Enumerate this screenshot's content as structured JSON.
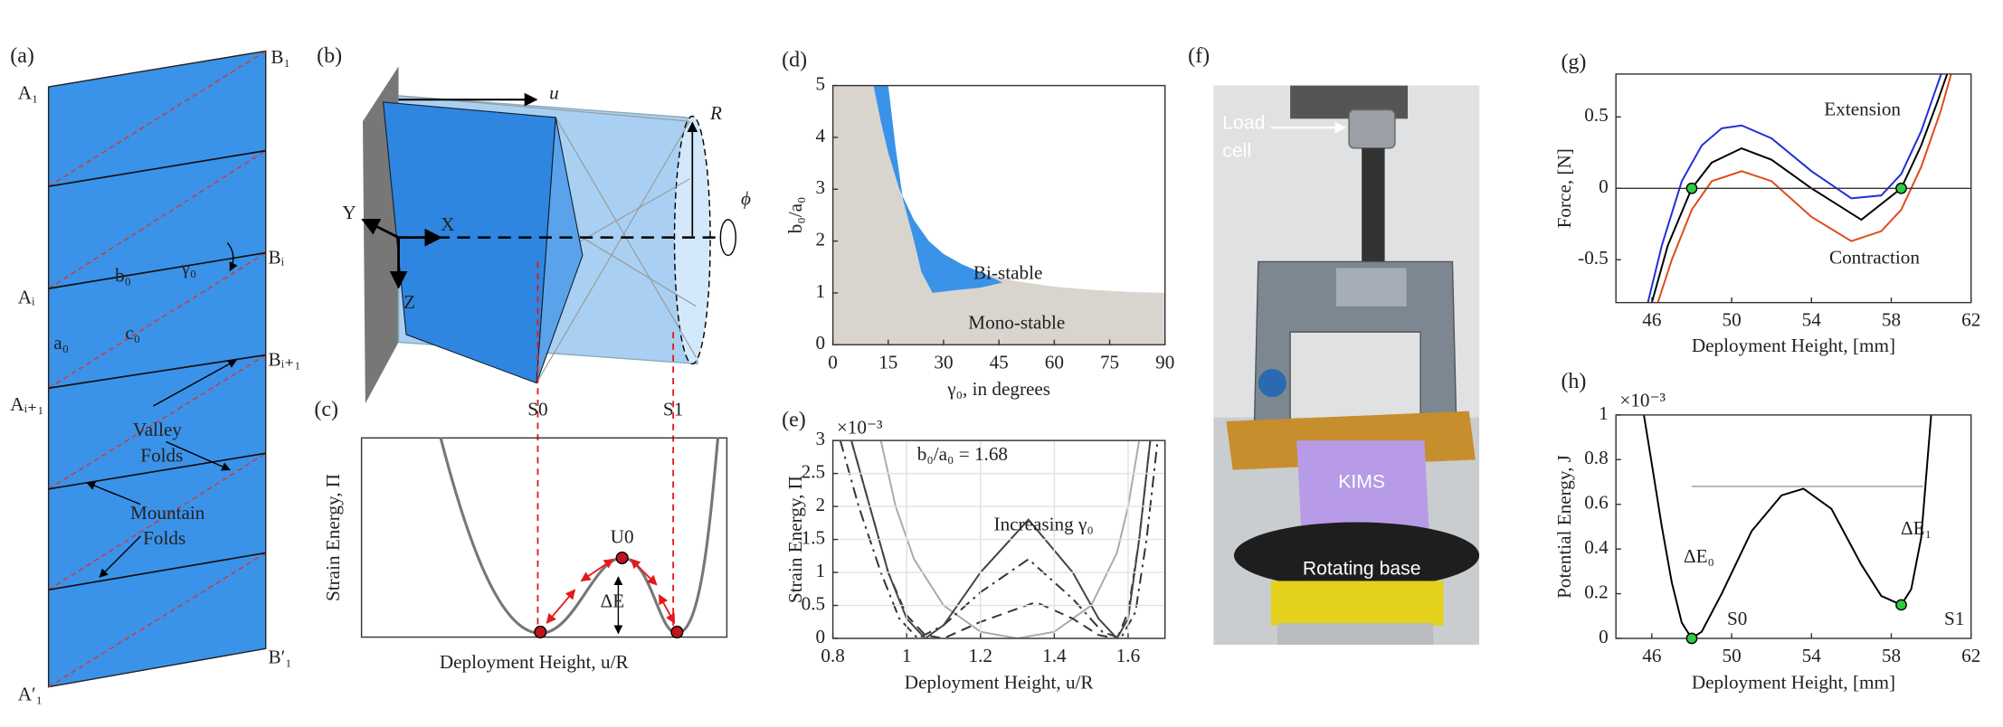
{
  "panel_a": {
    "label": "(a)",
    "vertex_labels": [
      "A₁",
      "B₁",
      "Aᵢ",
      "Bᵢ",
      "Aᵢ₊₁",
      "Bᵢ₊₁",
      "A′₁",
      "B′₁"
    ],
    "edge_labels": [
      "b₀",
      "γ₀",
      "a₀",
      "c₀"
    ],
    "valley_folds": [
      "Valley",
      "Folds"
    ],
    "mountain_folds": [
      "Mountain",
      "Folds"
    ]
  },
  "panel_b": {
    "label": "(b)",
    "labels": [
      "u",
      "R",
      "ϕ",
      "Y",
      "X",
      "Z",
      "S0",
      "S1"
    ]
  },
  "panel_c": {
    "label": "(c)",
    "ylabel": "Strain Energy, Π",
    "xlabel": "Deployment Height, u/R",
    "labels": [
      "U0",
      "ΔE"
    ]
  },
  "panel_f": {
    "label": "(f)",
    "load_cell": [
      "Load",
      "cell"
    ],
    "specimen": "KIMS",
    "base": "Rotating base"
  },
  "chart_data": [
    {
      "type": "area",
      "panel": "(d)",
      "xlabel": "γ₀, in degrees",
      "ylabel": "b₀/a₀",
      "xlim": [
        0,
        90
      ],
      "ylim": [
        0,
        5
      ],
      "xticks": [
        0,
        15,
        30,
        45,
        60,
        75,
        90
      ],
      "yticks": [
        0,
        1,
        2,
        3,
        4,
        5
      ],
      "series": [
        {
          "name": "Mono-stable",
          "color": "#d9d5ce",
          "x": [
            0,
            11,
            13,
            15,
            18,
            22,
            26,
            30,
            35,
            40,
            45,
            50,
            60,
            70,
            80,
            90,
            90,
            0
          ],
          "y": [
            5,
            5,
            4.3,
            3.7,
            3.0,
            2.4,
            2.0,
            1.75,
            1.55,
            1.4,
            1.3,
            1.22,
            1.12,
            1.06,
            1.02,
            1.0,
            0,
            0
          ]
        },
        {
          "name": "Bi-stable",
          "color": "#3a93e8",
          "x": [
            11,
            13,
            15,
            18,
            22,
            26,
            30,
            35,
            40,
            46,
            40,
            33,
            27,
            24,
            22,
            19,
            17,
            15
          ],
          "y": [
            5,
            4.3,
            3.7,
            3.0,
            2.4,
            2.0,
            1.75,
            1.55,
            1.4,
            1.2,
            1.1,
            1.05,
            1.0,
            1.4,
            2.0,
            2.8,
            3.8,
            5
          ]
        }
      ]
    },
    {
      "type": "line",
      "panel": "(e)",
      "xlabel": "Deployment Height, u/R",
      "ylabel": "Strain Energy, Π",
      "y_multiplier": "×10⁻³",
      "xlim": [
        0.8,
        1.7
      ],
      "ylim": [
        0,
        3
      ],
      "xticks": [
        0.8,
        1,
        1.2,
        1.4,
        1.6
      ],
      "yticks": [
        0,
        0.5,
        1,
        1.5,
        2,
        2.5,
        3
      ],
      "grid": true,
      "annotations": [
        "b₀/a₀ = 1.68",
        "Increasing γ₀"
      ],
      "series": [
        {
          "color": "#aaaaaa",
          "dash": "solid",
          "x": [
            0.93,
            0.97,
            1.02,
            1.1,
            1.2,
            1.3,
            1.4,
            1.5,
            1.57,
            1.6,
            1.63
          ],
          "y": [
            3,
            2.0,
            1.2,
            0.5,
            0.1,
            0,
            0.1,
            0.5,
            1.3,
            2,
            3
          ]
        },
        {
          "color": "#333333",
          "dash": "dashed",
          "x": [
            0.85,
            0.9,
            0.95,
            1.0,
            1.05,
            1.1,
            1.2,
            1.35,
            1.45,
            1.52,
            1.57,
            1.6,
            1.63,
            1.66
          ],
          "y": [
            3,
            2,
            1,
            0.35,
            0.05,
            0,
            0.25,
            0.55,
            0.3,
            0.05,
            0,
            0.4,
            1.5,
            3
          ]
        },
        {
          "color": "#333333",
          "dash": "dashdot",
          "x": [
            0.82,
            0.87,
            0.93,
            0.98,
            1.03,
            1.1,
            1.2,
            1.33,
            1.45,
            1.53,
            1.58,
            1.62,
            1.65,
            1.68
          ],
          "y": [
            3,
            2.0,
            1.0,
            0.3,
            0,
            0.2,
            0.7,
            1.2,
            0.6,
            0.1,
            0,
            0.4,
            1.5,
            3
          ]
        },
        {
          "color": "#444444",
          "dash": "solid",
          "x": [
            0.85,
            0.9,
            0.95,
            1.0,
            1.05,
            1.1,
            1.2,
            1.33,
            1.45,
            1.52,
            1.57,
            1.6,
            1.63,
            1.66
          ],
          "y": [
            3,
            2.0,
            1.0,
            0.3,
            0,
            0.2,
            1.0,
            1.8,
            1.0,
            0.3,
            0,
            0.3,
            1.5,
            3
          ]
        }
      ]
    },
    {
      "type": "line",
      "panel": "(g)",
      "xlabel": "Deployment Height, [mm]",
      "ylabel": "Force, [N]",
      "xlim": [
        44.2,
        62
      ],
      "ylim": [
        -0.8,
        0.8
      ],
      "xticks": [
        46,
        50,
        54,
        58,
        62
      ],
      "yticks": [
        -0.5,
        0,
        0.5
      ],
      "zero_line": true,
      "annotations": [
        "Extension",
        "Contraction"
      ],
      "series": [
        {
          "color": "#1f2fd6",
          "dash": "solid",
          "x": [
            45.8,
            46.5,
            47.5,
            48.5,
            49.5,
            50.5,
            52,
            54,
            56,
            57.5,
            58.5,
            59.5,
            60.5
          ],
          "y": [
            -0.8,
            -0.4,
            0.05,
            0.3,
            0.42,
            0.44,
            0.35,
            0.12,
            -0.07,
            -0.05,
            0.1,
            0.4,
            0.8
          ]
        },
        {
          "color": "#000000",
          "dash": "solid",
          "x": [
            46,
            46.8,
            48,
            49,
            50.5,
            52,
            54,
            56.5,
            58.5,
            59.5,
            60.3,
            60.8
          ],
          "y": [
            -0.8,
            -0.4,
            0,
            0.18,
            0.28,
            0.2,
            0,
            -0.22,
            0,
            0.3,
            0.6,
            0.8
          ]
        },
        {
          "color": "#e04a1a",
          "dash": "solid",
          "x": [
            46.3,
            47,
            48,
            49,
            50.5,
            52,
            54,
            56,
            57.5,
            58.5,
            59.5,
            60.5,
            61
          ],
          "y": [
            -0.8,
            -0.5,
            -0.15,
            0.05,
            0.12,
            0.05,
            -0.2,
            -0.37,
            -0.3,
            -0.15,
            0.15,
            0.55,
            0.8
          ]
        }
      ],
      "points": {
        "color": "#2ecc40",
        "x": [
          48,
          58.5
        ],
        "y": [
          0,
          0
        ]
      }
    },
    {
      "type": "line",
      "panel": "(h)",
      "xlabel": "Deployment Height, [mm]",
      "ylabel": "Potential Energy, J",
      "y_multiplier": "×10⁻³",
      "xlim": [
        44.2,
        62
      ],
      "ylim": [
        0,
        1
      ],
      "xticks": [
        46,
        50,
        54,
        58,
        62
      ],
      "yticks": [
        0,
        0.2,
        0.4,
        0.6,
        0.8,
        1
      ],
      "annotations": [
        "ΔE₀",
        "ΔE₁"
      ],
      "series": [
        {
          "color": "#000000",
          "dash": "solid",
          "x": [
            45.6,
            46,
            46.5,
            47,
            47.5,
            48,
            48.5,
            49.5,
            51,
            52.5,
            53.6,
            55,
            56.5,
            57.5,
            58.5,
            59,
            59.5,
            60
          ],
          "y": [
            1,
            0.78,
            0.5,
            0.25,
            0.07,
            0,
            0.03,
            0.2,
            0.48,
            0.64,
            0.67,
            0.58,
            0.33,
            0.19,
            0.15,
            0.22,
            0.45,
            1
          ]
        }
      ],
      "reference_line": {
        "y": 0.68,
        "x": [
          48,
          59.6
        ]
      },
      "points": {
        "color": "#2ecc40",
        "x": [
          48,
          58.5
        ],
        "y": [
          0,
          0.15
        ],
        "labels": [
          "S0",
          "S1"
        ]
      }
    }
  ]
}
